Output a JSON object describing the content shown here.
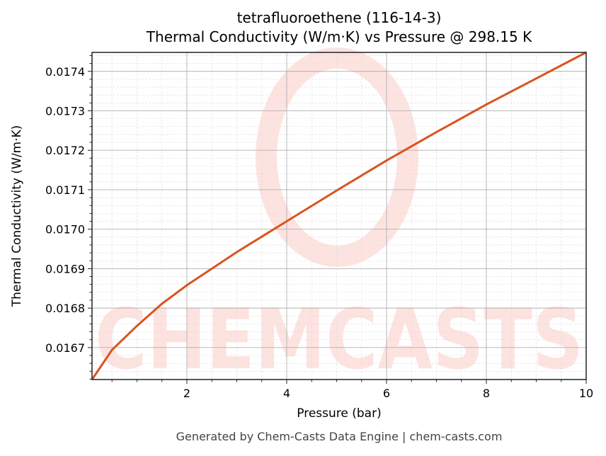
{
  "chart_data": {
    "type": "line",
    "title": "tetrafluoroethene (116-14-3)",
    "subtitle": "Thermal Conductivity (W/m·K) vs Pressure @ 298.15 K",
    "xlabel": "Pressure (bar)",
    "ylabel": "Thermal Conductivity (W/m·K)",
    "xlim": [
      0.1,
      10
    ],
    "ylim": [
      0.016619,
      0.017448
    ],
    "xticks": [
      2,
      4,
      6,
      8,
      10
    ],
    "xtick_labels": [
      "2",
      "4",
      "6",
      "8",
      "10"
    ],
    "yticks": [
      0.0167,
      0.0168,
      0.0169,
      0.017,
      0.0171,
      0.0172,
      0.0173,
      0.0174
    ],
    "ytick_labels": [
      "0.0167",
      "0.0168",
      "0.0169",
      "0.0170",
      "0.0171",
      "0.0172",
      "0.0173",
      "0.0174"
    ],
    "grid": true,
    "legend": null,
    "series": [
      {
        "name": "Thermal Conductivity",
        "color": "#d9541e",
        "x": [
          0.1,
          0.5,
          1.0,
          1.5,
          2.0,
          3.0,
          4.0,
          5.0,
          6.0,
          7.0,
          8.0,
          9.0,
          10.0
        ],
        "y": [
          0.016619,
          0.016694,
          0.016755,
          0.016811,
          0.016858,
          0.016942,
          0.01702,
          0.017098,
          0.017174,
          0.017246,
          0.017316,
          0.017382,
          0.017448
        ]
      }
    ]
  },
  "header": {
    "title": "tetrafluoroethene (116-14-3)",
    "subtitle": "Thermal Conductivity (W/m·K) vs Pressure @ 298.15 K"
  },
  "axes": {
    "xlabel": "Pressure (bar)",
    "ylabel": "Thermal Conductivity (W/m·K)"
  },
  "watermark": {
    "text": "CHEMCASTS",
    "color": "#fde3e0"
  },
  "footer": {
    "text": "Generated by Chem-Casts Data Engine | chem-casts.com"
  }
}
